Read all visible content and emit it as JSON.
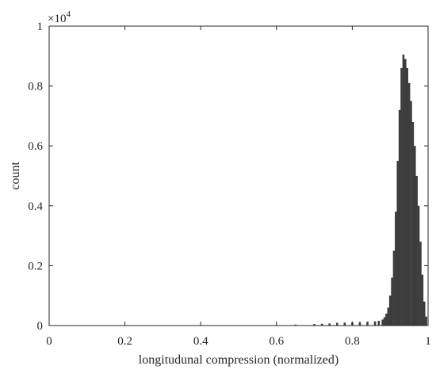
{
  "chart_data": {
    "type": "bar",
    "title": "",
    "xlabel": "longitudunal compression (normalized)",
    "ylabel": "count",
    "y_multiplier_label": "×10",
    "y_multiplier_exponent": "4",
    "xlim": [
      0,
      1
    ],
    "ylim": [
      0,
      1
    ],
    "x_ticks": [
      0,
      0.2,
      0.4,
      0.6,
      0.8,
      1
    ],
    "x_tick_labels": [
      "0",
      "0.2",
      "0.4",
      "0.6",
      "0.8",
      "1"
    ],
    "y_ticks": [
      0,
      0.2,
      0.4,
      0.6,
      0.8,
      1
    ],
    "y_tick_labels": [
      "0",
      "0.2",
      "0.4",
      "0.6",
      "0.8",
      "1"
    ],
    "grid": false,
    "bar_color": "#3d3d3d",
    "series": [
      {
        "x": [
          0.55,
          0.6,
          0.65,
          0.7,
          0.72,
          0.74,
          0.76,
          0.78,
          0.8,
          0.82,
          0.84,
          0.86,
          0.87,
          0.88,
          0.885,
          0.89,
          0.895,
          0.9,
          0.905,
          0.91,
          0.915,
          0.92,
          0.925,
          0.93,
          0.935,
          0.94,
          0.945,
          0.95,
          0.955,
          0.96,
          0.965,
          0.97,
          0.975,
          0.98,
          0.985,
          0.99,
          0.995
        ],
        "values": [
          0.001,
          0.002,
          0.003,
          0.005,
          0.006,
          0.007,
          0.009,
          0.01,
          0.011,
          0.012,
          0.013,
          0.014,
          0.016,
          0.02,
          0.028,
          0.04,
          0.06,
          0.1,
          0.16,
          0.25,
          0.38,
          0.55,
          0.72,
          0.86,
          0.905,
          0.89,
          0.86,
          0.81,
          0.75,
          0.68,
          0.6,
          0.5,
          0.4,
          0.28,
          0.17,
          0.08,
          0.03
        ]
      }
    ]
  }
}
